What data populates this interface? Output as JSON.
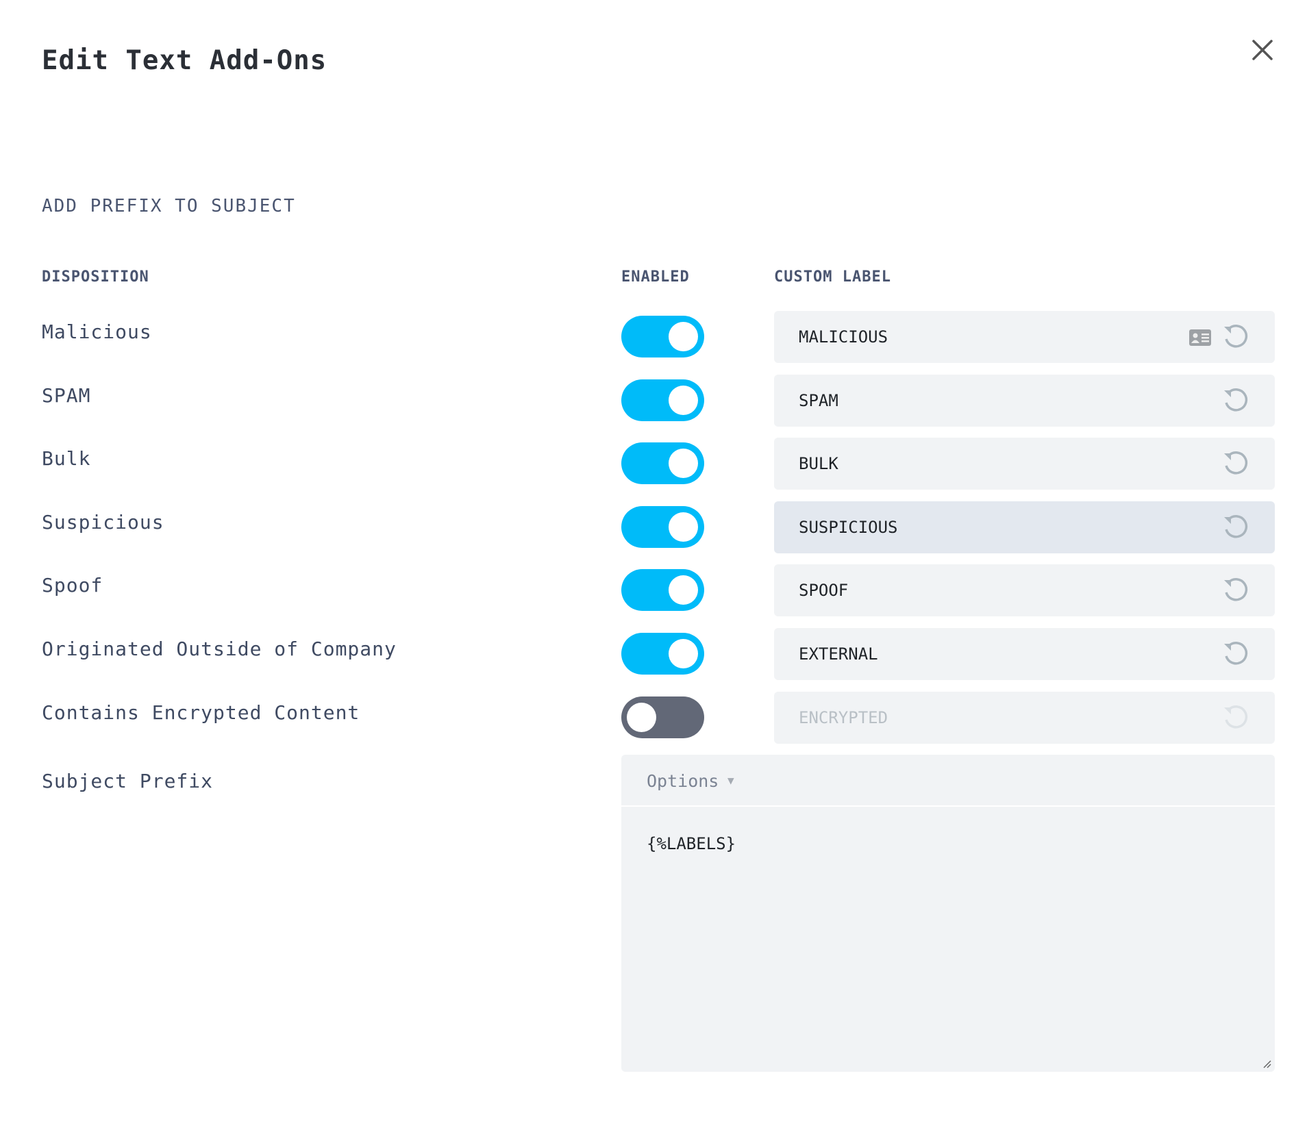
{
  "dialog": {
    "title": "Edit Text Add-Ons",
    "close_icon": "close-icon"
  },
  "section_title": "ADD PREFIX TO SUBJECT",
  "columns": {
    "disposition": "DISPOSITION",
    "enabled": "ENABLED",
    "custom_label": "CUSTOM LABEL"
  },
  "rows": [
    {
      "disposition": "Malicious",
      "enabled": true,
      "label": "MALICIOUS",
      "has_card_icon": true
    },
    {
      "disposition": "SPAM",
      "enabled": true,
      "label": "SPAM"
    },
    {
      "disposition": "Bulk",
      "enabled": true,
      "label": "BULK"
    },
    {
      "disposition": "Suspicious",
      "enabled": true,
      "label": "SUSPICIOUS",
      "hovered": true
    },
    {
      "disposition": "Spoof",
      "enabled": true,
      "label": "SPOOF"
    },
    {
      "disposition": "Originated Outside of Company",
      "enabled": true,
      "label": "EXTERNAL"
    },
    {
      "disposition": "Contains Encrypted Content",
      "enabled": false,
      "label": "ENCRYPTED",
      "disabled": true
    }
  ],
  "subject_prefix": {
    "label": "Subject Prefix",
    "options_label": "Options",
    "value": "{%LABELS}"
  },
  "colors": {
    "toggle_on": "#00bbf9",
    "toggle_off": "#626877",
    "input_bg": "#f1f3f5"
  }
}
